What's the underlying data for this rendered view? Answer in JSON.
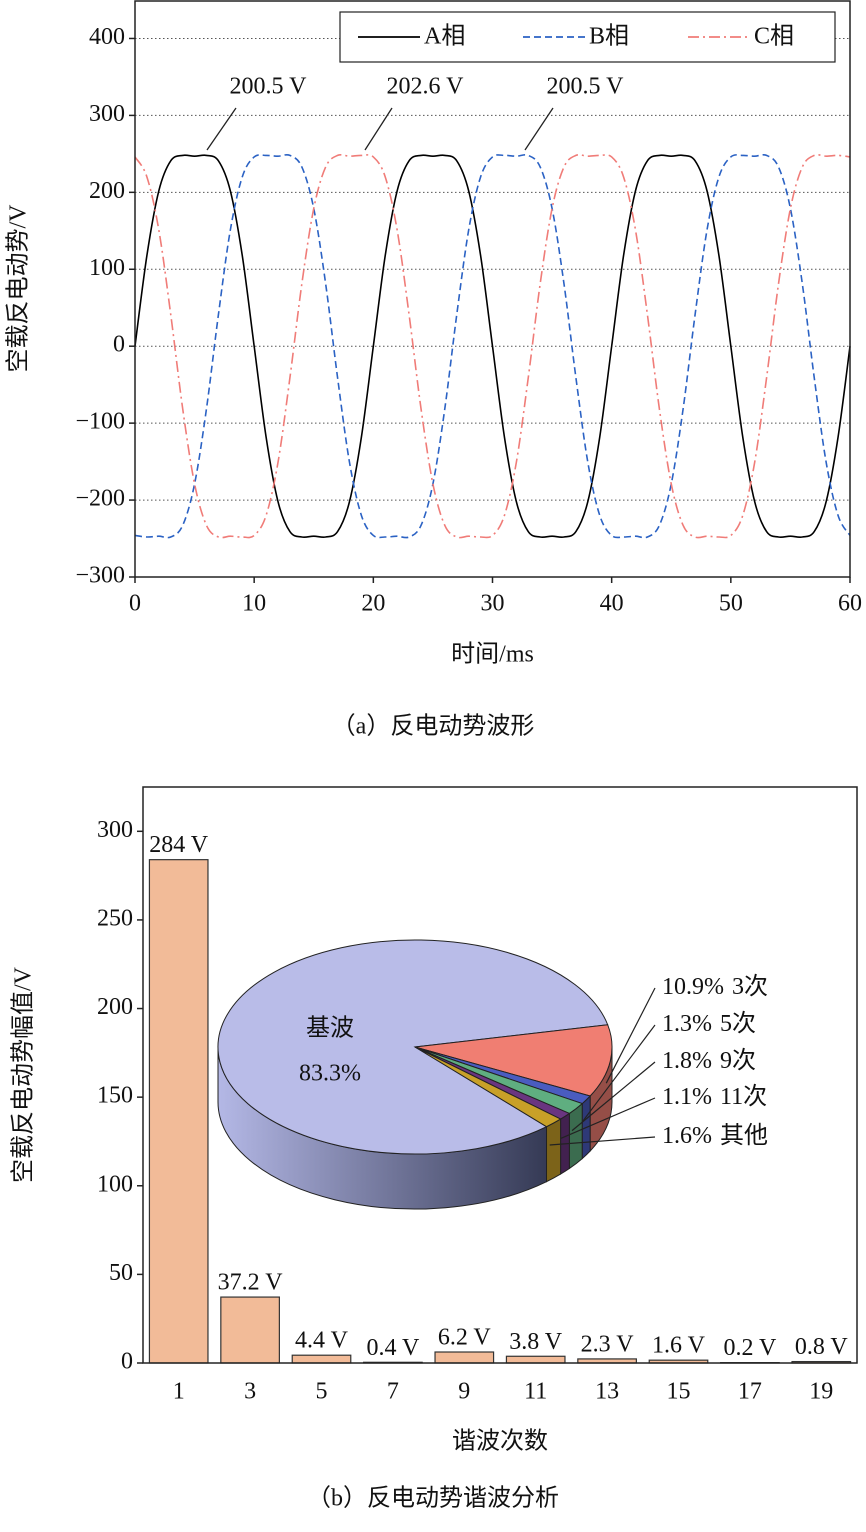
{
  "chart_data": [
    {
      "type": "line",
      "x": [
        0,
        1,
        2,
        3,
        4,
        5,
        6,
        7,
        8,
        9,
        10,
        11,
        12,
        13,
        14,
        15,
        16,
        17,
        18,
        19,
        20,
        21,
        22,
        23,
        24,
        25,
        26,
        27,
        28,
        29,
        30,
        31,
        32,
        33,
        34,
        35,
        36,
        37,
        38,
        39,
        40,
        41,
        42,
        43,
        44,
        45,
        46,
        47,
        48,
        49,
        50,
        51,
        52,
        53,
        54,
        55,
        56,
        57,
        58,
        59,
        60
      ],
      "series": [
        {
          "name": "A相",
          "color": "#000000",
          "dash": "solid",
          "values": [
            0,
            118,
            202,
            241,
            248,
            247,
            248,
            241,
            202,
            118,
            0,
            -118,
            -202,
            -241,
            -248,
            -247,
            -248,
            -241,
            -202,
            -118,
            0,
            118,
            202,
            241,
            248,
            247,
            248,
            241,
            202,
            118,
            0,
            -118,
            -202,
            -241,
            -248,
            -247,
            -248,
            -241,
            -202,
            -118,
            0,
            118,
            202,
            241,
            248,
            247,
            248,
            241,
            202,
            118,
            0,
            -118,
            -202,
            -241,
            -248,
            -247,
            -248,
            -241,
            -202,
            -118,
            0
          ]
        },
        {
          "name": "B相",
          "color": "#2b62c4",
          "dash": "dashed",
          "values": [
            -246,
            -248,
            -247,
            -248,
            -233,
            -179,
            -81,
            41,
            151,
            220,
            246,
            248,
            247,
            248,
            233,
            179,
            81,
            -41,
            -151,
            -220,
            -246,
            -248,
            -247,
            -248,
            -233,
            -179,
            -81,
            41,
            151,
            220,
            246,
            248,
            247,
            248,
            233,
            179,
            81,
            -41,
            -151,
            -220,
            -246,
            -248,
            -247,
            -248,
            -233,
            -179,
            -81,
            41,
            151,
            220,
            246,
            248,
            247,
            248,
            233,
            179,
            81,
            -41,
            -151,
            -220,
            -246
          ]
        },
        {
          "name": "C相",
          "color": "#f07c78",
          "dash": "dashdot",
          "values": [
            246,
            220,
            151,
            41,
            -81,
            -179,
            -233,
            -248,
            -247,
            -248,
            -246,
            -220,
            -151,
            -41,
            81,
            179,
            233,
            248,
            247,
            248,
            246,
            220,
            151,
            41,
            -81,
            -179,
            -233,
            -248,
            -247,
            -248,
            -246,
            -220,
            -151,
            -41,
            81,
            179,
            233,
            248,
            247,
            248,
            246,
            220,
            151,
            41,
            -81,
            -179,
            -233,
            -248,
            -247,
            -248,
            -246,
            -220,
            -151,
            -41,
            81,
            179,
            233,
            248,
            247,
            248,
            246
          ]
        }
      ],
      "xlim": [
        0,
        60
      ],
      "ylim": [
        -300,
        450
      ],
      "xticks": [
        0,
        10,
        20,
        30,
        40,
        50,
        60
      ],
      "yticks": [
        {
          "value": -300,
          "label": "−300"
        },
        {
          "value": -200,
          "label": "−200"
        },
        {
          "value": -100,
          "label": "−100"
        },
        0,
        100,
        200,
        300,
        400
      ],
      "grid": true,
      "legend": "top-right",
      "xlabel": "时间/ms",
      "ylabel": "空载反电动势/V",
      "annotations": [
        "200.5 V",
        "202.6 V",
        "200.5 V"
      ],
      "caption": "（a）反电动势波形"
    },
    {
      "type": "bar",
      "categories": [
        "1",
        "3",
        "5",
        "7",
        "9",
        "11",
        "13",
        "15",
        "17",
        "19"
      ],
      "values": [
        284,
        37.2,
        4.4,
        0.4,
        6.2,
        3.8,
        2.3,
        1.6,
        0.2,
        0.8
      ],
      "value_labels": [
        "284 V",
        "37.2 V",
        "4.4 V",
        "0.4 V",
        "6.2 V",
        "3.8 V",
        "2.3 V",
        "1.6 V",
        "0.2 V",
        "0.8 V"
      ],
      "color": "#f2bb98",
      "ylim": [
        0,
        325
      ],
      "yticks": [
        0,
        50,
        100,
        150,
        200,
        250,
        300
      ],
      "xlabel": "谐波次数",
      "ylabel": "空载反电动势幅值/V",
      "caption": "（b）反电动势谐波分析"
    },
    {
      "type": "pie",
      "categories": [
        "基波",
        "3次",
        "5次",
        "9次",
        "11次",
        "其他"
      ],
      "values": [
        83.3,
        10.9,
        1.3,
        1.8,
        1.1,
        1.6
      ],
      "value_labels": [
        "83.3%",
        "10.9%",
        "1.3%",
        "1.8%",
        "1.1%",
        "1.6%"
      ],
      "colors": [
        "#b9bce8",
        "#f07e72",
        "#4a5cc0",
        "#5fae80",
        "#6a3580",
        "#c8a028"
      ]
    }
  ]
}
